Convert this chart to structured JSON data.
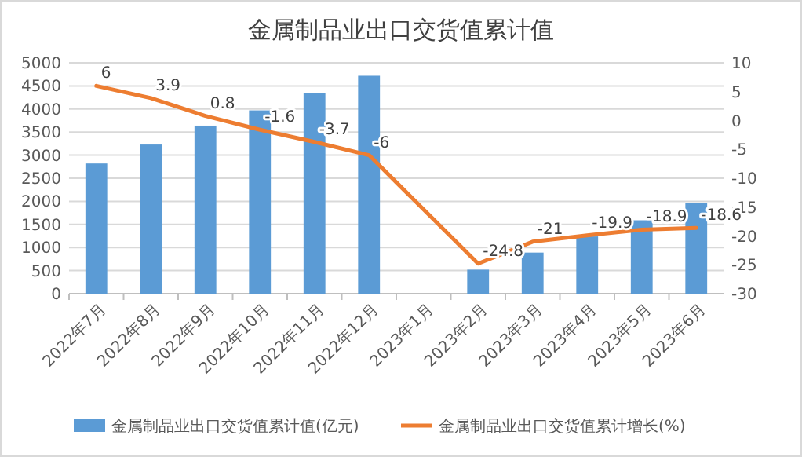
{
  "chart_data": {
    "type": "bar",
    "title": "金属制品业出口交货值累计值",
    "categories": [
      "2022年7月",
      "2022年8月",
      "2022年9月",
      "2022年10月",
      "2022年11月",
      "2022年12月",
      "2023年1月",
      "2023年2月",
      "2023年3月",
      "2023年4月",
      "2023年5月",
      "2023年6月"
    ],
    "series": [
      {
        "name": "金属制品业出口交货值累计值(亿元)",
        "color": "#5b9bd5",
        "values": [
          2820,
          3230,
          3640,
          3970,
          4340,
          4720,
          null,
          520,
          890,
          1240,
          1590,
          1960
        ]
      },
      {
        "name": "金属制品业出口交货值累计增长(%)",
        "type": "line",
        "axis": "y2",
        "color": "#ed7d31",
        "data_labels": true,
        "values": [
          6,
          3.9,
          0.8,
          -1.6,
          -3.7,
          -6,
          null,
          -24.8,
          -21,
          -19.9,
          -18.9,
          -18.6
        ]
      }
    ],
    "ylim": [
      0,
      5000
    ],
    "yticks": [
      0,
      500,
      1000,
      1500,
      2000,
      2500,
      3000,
      3500,
      4000,
      4500,
      5000
    ],
    "y2lim": [
      -30,
      10
    ],
    "y2ticks": [
      -30,
      -25,
      -20,
      -15,
      -10,
      -5,
      0,
      5,
      10
    ],
    "grid": "y",
    "legend": "bottom"
  }
}
